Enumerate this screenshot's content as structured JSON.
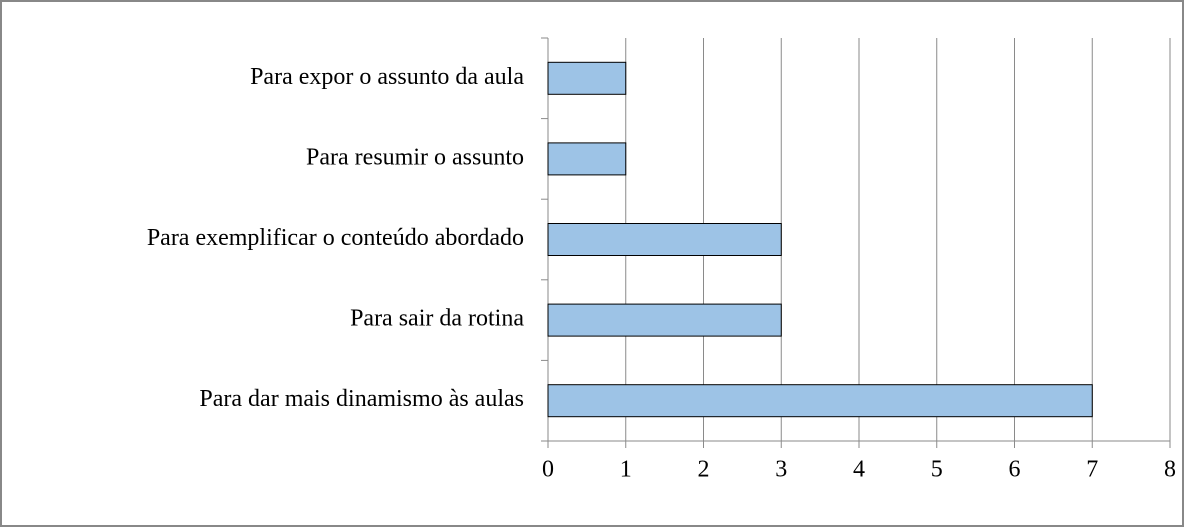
{
  "chart_data": {
    "type": "bar",
    "orientation": "horizontal",
    "categories": [
      "Para expor o assunto da aula",
      "Para resumir o assunto",
      "Para exemplificar o conteúdo abordado",
      "Para sair da rotina",
      "Para dar mais dinamismo às aulas"
    ],
    "values": [
      1,
      1,
      3,
      3,
      7
    ],
    "color": "#9dc3e6",
    "xlim": [
      0,
      8
    ],
    "xticks": [
      0,
      1,
      2,
      3,
      4,
      5,
      6,
      7,
      8
    ],
    "grid": true
  }
}
